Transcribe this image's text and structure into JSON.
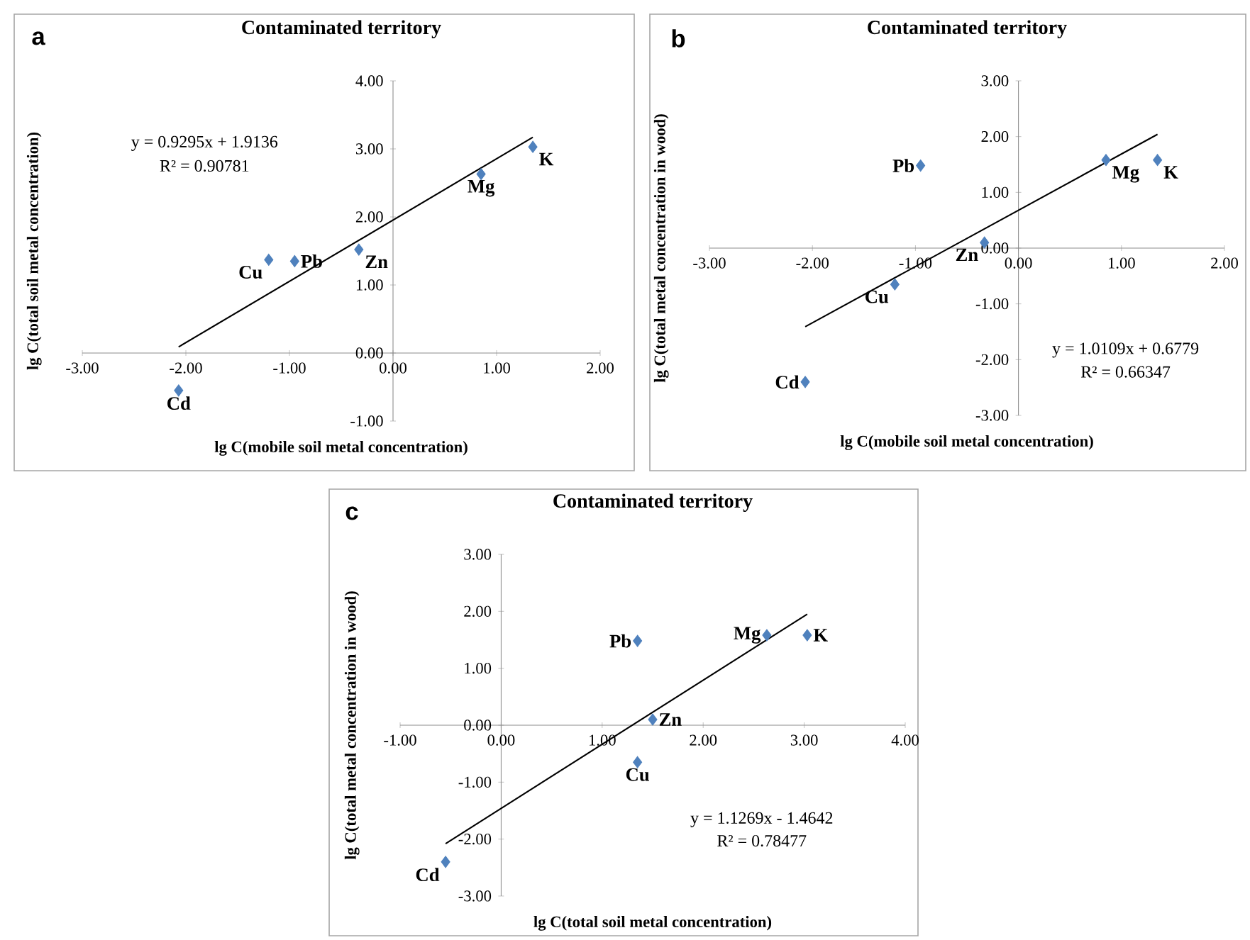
{
  "chart_data": [
    {
      "type": "scatter",
      "title": "Contaminated territory",
      "xlabel": "lg C(mobile soil metal concentration)",
      "ylabel": "lg C(total soil metal concentration)",
      "marker": "diamond",
      "xlim": [
        -3,
        2
      ],
      "ylim": [
        -1,
        4
      ],
      "xticks": [
        {
          "value": -3,
          "label": "-3.00"
        },
        {
          "value": -2,
          "label": "-2.00"
        },
        {
          "value": -1,
          "label": "-1.00"
        },
        {
          "value": 0,
          "label": "0.00"
        },
        {
          "value": 1,
          "label": "1.00"
        },
        {
          "value": 2,
          "label": "2.00"
        }
      ],
      "yticks": [
        {
          "value": -1,
          "label": "-1.00"
        },
        {
          "value": 0,
          "label": "0.00"
        },
        {
          "value": 1,
          "label": "1.00"
        },
        {
          "value": 2,
          "label": "2.00"
        },
        {
          "value": 3,
          "label": "3.00"
        },
        {
          "value": 4,
          "label": "4.00"
        }
      ],
      "series": [
        {
          "color": "#4f81bd",
          "x": [
            -2.07,
            -1.2,
            -0.95,
            -0.33,
            0.85,
            1.35
          ],
          "values": [
            -0.55,
            1.37,
            1.35,
            1.52,
            2.63,
            3.03
          ]
        },
        {
          "type": "line",
          "marker": "none",
          "color": "#000000",
          "x": [
            -2.07,
            1.35
          ],
          "values": [
            0.09,
            3.17
          ]
        }
      ],
      "annotations": [
        "a",
        "y = 0.9295x + 1.9136",
        "R² = 0.90781",
        {
          "text": "Cd",
          "x": -2.07,
          "y": -0.55
        },
        {
          "text": "Cu",
          "x": -1.2,
          "y": 1.37
        },
        {
          "text": "Pb",
          "x": -0.95,
          "y": 1.35
        },
        {
          "text": "Zn",
          "x": -0.33,
          "y": 1.52
        },
        {
          "text": "Mg",
          "x": 0.85,
          "y": 2.63
        },
        {
          "text": "K",
          "x": 1.35,
          "y": 3.03
        }
      ]
    },
    {
      "type": "scatter",
      "title": "Contaminated territory",
      "xlabel": "lg C(mobile soil metal concentration)",
      "ylabel": "lg C(total metal concentration in wood)",
      "marker": "diamond",
      "xlim": [
        -3,
        2
      ],
      "ylim": [
        -3,
        3
      ],
      "xticks": [
        {
          "value": -3,
          "label": "-3.00"
        },
        {
          "value": -2,
          "label": "-2.00"
        },
        {
          "value": -1,
          "label": "-1.00"
        },
        {
          "value": 0,
          "label": "0.00"
        },
        {
          "value": 1,
          "label": "1.00"
        },
        {
          "value": 2,
          "label": "2.00"
        }
      ],
      "yticks": [
        {
          "value": -3,
          "label": "-3.00"
        },
        {
          "value": -2,
          "label": "-2.00"
        },
        {
          "value": -1,
          "label": "-1.00"
        },
        {
          "value": 0,
          "label": "0.00"
        },
        {
          "value": 1,
          "label": "1.00"
        },
        {
          "value": 2,
          "label": "2.00"
        },
        {
          "value": 3,
          "label": "3.00"
        }
      ],
      "series": [
        {
          "color": "#4f81bd",
          "x": [
            -2.07,
            -1.2,
            -0.95,
            -0.33,
            0.85,
            1.35
          ],
          "values": [
            -2.4,
            -0.65,
            1.48,
            0.1,
            1.58,
            1.58
          ]
        },
        {
          "type": "line",
          "marker": "none",
          "color": "#000000",
          "x": [
            -2.07,
            1.35
          ],
          "values": [
            -1.41,
            2.04
          ]
        }
      ],
      "annotations": [
        "b",
        "y = 1.0109x + 0.6779",
        "R² = 0.66347",
        {
          "text": "Cd",
          "x": -2.07,
          "y": -2.4
        },
        {
          "text": "Cu",
          "x": -1.2,
          "y": -0.65
        },
        {
          "text": "Pb",
          "x": -0.95,
          "y": 1.48
        },
        {
          "text": "Zn",
          "x": -0.33,
          "y": 0.1
        },
        {
          "text": "Mg",
          "x": 0.85,
          "y": 1.58
        },
        {
          "text": "K",
          "x": 1.35,
          "y": 1.58
        }
      ]
    },
    {
      "type": "scatter",
      "title": "Contaminated territory",
      "xlabel": "lg C(total soil metal concentration)",
      "ylabel": "lg C(total metal concentration in wood)",
      "marker": "diamond",
      "xlim": [
        -1,
        4
      ],
      "ylim": [
        -3,
        3
      ],
      "xticks": [
        {
          "value": -1,
          "label": "-1.00"
        },
        {
          "value": 0,
          "label": "0.00"
        },
        {
          "value": 1,
          "label": "1.00"
        },
        {
          "value": 2,
          "label": "2.00"
        },
        {
          "value": 3,
          "label": "3.00"
        },
        {
          "value": 4,
          "label": "4.00"
        }
      ],
      "yticks": [
        {
          "value": -3,
          "label": "-3.00"
        },
        {
          "value": -2,
          "label": "-2.00"
        },
        {
          "value": -1,
          "label": "-1.00"
        },
        {
          "value": 0,
          "label": "0.00"
        },
        {
          "value": 1,
          "label": "1.00"
        },
        {
          "value": 2,
          "label": "2.00"
        },
        {
          "value": 3,
          "label": "3.00"
        }
      ],
      "series": [
        {
          "color": "#4f81bd",
          "x": [
            -0.55,
            1.35,
            1.35,
            1.5,
            2.63,
            3.03
          ],
          "values": [
            -2.4,
            -0.65,
            1.48,
            0.1,
            1.58,
            1.58
          ]
        },
        {
          "type": "line",
          "marker": "none",
          "color": "#000000",
          "x": [
            -0.55,
            3.03
          ],
          "values": [
            -2.08,
            1.95
          ]
        }
      ],
      "annotations": [
        "c",
        "y = 1.1269x - 1.4642",
        "R² = 0.78477",
        {
          "text": "Cd",
          "x": -0.55,
          "y": -2.4
        },
        {
          "text": "Cu",
          "x": 1.35,
          "y": -0.65
        },
        {
          "text": "Pb",
          "x": 1.35,
          "y": 1.48
        },
        {
          "text": "Zn",
          "x": 1.5,
          "y": 0.1
        },
        {
          "text": "Mg",
          "x": 2.63,
          "y": 1.58
        },
        {
          "text": "K",
          "x": 3.03,
          "y": 1.58
        }
      ]
    }
  ]
}
